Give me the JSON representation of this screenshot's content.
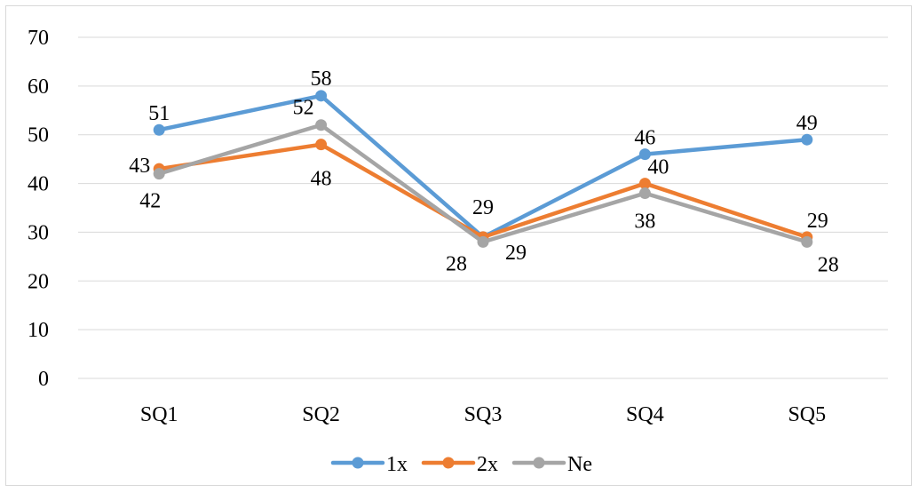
{
  "chart_data": {
    "type": "line",
    "categories": [
      "SQ1",
      "SQ2",
      "SQ3",
      "SQ4",
      "SQ5"
    ],
    "ylim": [
      0,
      70
    ],
    "yticks": [
      0,
      10,
      20,
      30,
      40,
      50,
      60,
      70
    ],
    "grid": true,
    "legend_position": "bottom",
    "series": [
      {
        "name": "1x",
        "color": "#5b9bd5",
        "values": [
          51,
          58,
          29,
          46,
          49
        ]
      },
      {
        "name": "2x",
        "color": "#ed7d31",
        "values": [
          43,
          48,
          29,
          40,
          29
        ]
      },
      {
        "name": "Ne",
        "color": "#a5a5a5",
        "values": [
          42,
          52,
          28,
          38,
          28
        ]
      }
    ]
  }
}
